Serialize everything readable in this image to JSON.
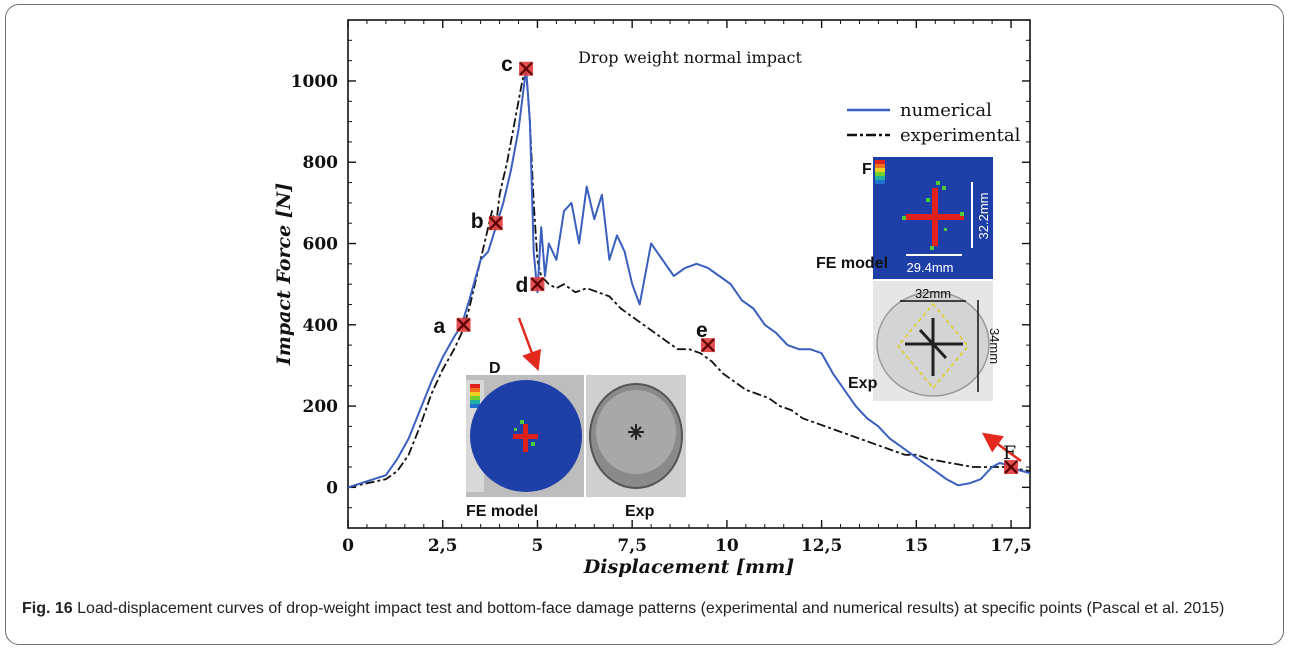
{
  "figure": {
    "caption_label": "Fig. 16",
    "caption_text": "Load-displacement curves of drop-weight impact test and bottom-face damage patterns (experimental and numerical results) at specific points (Pascal et al. 2015)"
  },
  "chart_data": {
    "type": "line",
    "title": "Drop weight normal impact",
    "xlabel": "Displacement [mm]",
    "ylabel": "Impact Force [N]",
    "xlim": [
      0,
      18
    ],
    "ylim": [
      -100,
      1150
    ],
    "x_ticks": [
      0,
      2.5,
      5,
      7.5,
      10,
      12.5,
      15,
      17.5
    ],
    "x_tick_labels": [
      "0",
      "2,5",
      "5",
      "7,5",
      "10",
      "12,5",
      "15",
      "17,5"
    ],
    "y_ticks": [
      0,
      200,
      400,
      600,
      800,
      1000
    ],
    "y_tick_labels": [
      "0",
      "200",
      "400",
      "600",
      "800",
      "1000"
    ],
    "grid": false,
    "legend_position": "top-right",
    "series": [
      {
        "name": "numerical",
        "color": "#3a5fbf",
        "style": "solid",
        "x": [
          0,
          0.5,
          1.0,
          1.3,
          1.6,
          1.9,
          2.2,
          2.5,
          2.8,
          3.0,
          3.2,
          3.5,
          3.7,
          3.9,
          4.1,
          4.3,
          4.5,
          4.7,
          4.8,
          4.9,
          5.0,
          5.1,
          5.2,
          5.3,
          5.5,
          5.7,
          5.9,
          6.1,
          6.3,
          6.5,
          6.7,
          6.9,
          7.1,
          7.3,
          7.5,
          7.7,
          8.0,
          8.3,
          8.6,
          8.9,
          9.2,
          9.5,
          9.8,
          10.1,
          10.4,
          10.7,
          11.0,
          11.3,
          11.6,
          11.9,
          12.2,
          12.5,
          12.8,
          13.1,
          13.4,
          13.7,
          14.0,
          14.3,
          14.6,
          14.9,
          15.2,
          15.5,
          15.8,
          16.1,
          16.4,
          16.7,
          17.0,
          17.2,
          17.4,
          17.6,
          17.8,
          18.0
        ],
        "y": [
          0,
          15,
          30,
          70,
          120,
          190,
          260,
          320,
          370,
          400,
          460,
          560,
          580,
          640,
          700,
          780,
          880,
          1030,
          900,
          580,
          480,
          640,
          520,
          600,
          560,
          680,
          700,
          600,
          740,
          660,
          720,
          560,
          620,
          580,
          500,
          450,
          600,
          560,
          520,
          540,
          550,
          540,
          520,
          500,
          460,
          440,
          400,
          380,
          350,
          340,
          340,
          330,
          280,
          240,
          200,
          170,
          150,
          120,
          100,
          80,
          60,
          40,
          20,
          5,
          10,
          20,
          50,
          60,
          55,
          45,
          40,
          35
        ],
        "line_width": 2
      },
      {
        "name": "experimental",
        "color": "#111111",
        "style": "dashed",
        "x": [
          0,
          0.5,
          1.0,
          1.3,
          1.6,
          1.9,
          2.2,
          2.5,
          2.8,
          3.0,
          3.2,
          3.4,
          3.6,
          3.8,
          3.9,
          4.0,
          4.1,
          4.2,
          4.3,
          4.4,
          4.5,
          4.6,
          4.7,
          4.8,
          4.9,
          5.0,
          5.1,
          5.3,
          5.5,
          5.7,
          6.0,
          6.3,
          6.6,
          6.9,
          7.2,
          7.5,
          7.8,
          8.1,
          8.4,
          8.7,
          9.0,
          9.3,
          9.6,
          9.9,
          10.2,
          10.5,
          10.8,
          11.1,
          11.4,
          11.7,
          12.0,
          12.3,
          12.6,
          12.9,
          13.2,
          13.5,
          13.8,
          14.1,
          14.4,
          14.7,
          15.0,
          15.3,
          15.6,
          15.9,
          16.2,
          16.5,
          16.8,
          17.1,
          17.4,
          17.7,
          18.0
        ],
        "y": [
          0,
          10,
          20,
          40,
          80,
          150,
          230,
          290,
          340,
          380,
          440,
          520,
          600,
          680,
          640,
          720,
          760,
          800,
          850,
          900,
          950,
          1000,
          1030,
          900,
          700,
          560,
          520,
          500,
          490,
          500,
          480,
          490,
          480,
          470,
          440,
          420,
          400,
          380,
          360,
          340,
          340,
          330,
          310,
          280,
          260,
          240,
          230,
          220,
          200,
          190,
          170,
          160,
          150,
          140,
          130,
          120,
          110,
          100,
          90,
          80,
          80,
          70,
          65,
          60,
          55,
          50,
          50,
          50,
          50,
          45,
          40
        ],
        "line_width": 1.8
      }
    ],
    "markers": [
      {
        "label": "a",
        "x": 3.05,
        "y": 400
      },
      {
        "label": "b",
        "x": 3.9,
        "y": 650
      },
      {
        "label": "c",
        "x": 4.7,
        "y": 1030
      },
      {
        "label": "d",
        "x": 5.0,
        "y": 500
      },
      {
        "label": "e",
        "x": 9.5,
        "y": 350
      },
      {
        "label": "F",
        "x": 17.5,
        "y": 50
      }
    ]
  },
  "insets": {
    "left": {
      "d_label": "D",
      "fe_label": "FE model",
      "exp_label": "Exp"
    },
    "right": {
      "f_label": "F",
      "fe_label": "FE model",
      "exp_label": "Exp",
      "fe_dim_vertical": "32.2mm",
      "fe_dim_horizontal": "29.4mm",
      "exp_dim_horizontal": "32mm",
      "exp_dim_vertical": "34mm"
    }
  },
  "colors": {
    "fe_background": "#1e3fa8",
    "damage_red": "#e0201a",
    "damage_green": "#4ccc3a",
    "arrow_red": "#e3281e",
    "marker_fill": "#e03c3c"
  }
}
